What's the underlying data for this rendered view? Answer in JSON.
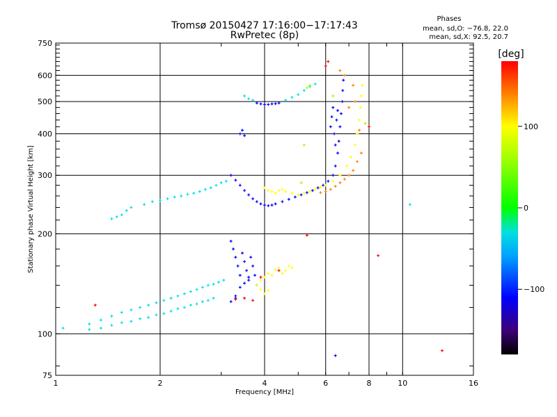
{
  "chart_data": {
    "type": "scatter",
    "title": "Tromsø 20150427 17:16:00−17:17:43",
    "subtitle": "RwPretec (8p)",
    "xlabel": "Frequency [MHz]",
    "ylabel": "Stationary phase Virtual Height [km]",
    "x_scale": "log",
    "y_scale": "log",
    "xlim": [
      1,
      16
    ],
    "ylim": [
      75,
      750
    ],
    "x_ticks": [
      1,
      2,
      4,
      6,
      8,
      10,
      16
    ],
    "x_tick_labels": [
      "1",
      "2",
      "4",
      "6",
      "8",
      "10",
      "16"
    ],
    "y_ticks": [
      75,
      100,
      200,
      300,
      400,
      500,
      600,
      750
    ],
    "y_tick_labels": [
      "75",
      "100",
      "200",
      "300",
      "400",
      "500",
      "600",
      "750"
    ],
    "grid": true,
    "phases_box": {
      "title": "Phases",
      "o_line": "mean, sd,O: −76.8, 22.0",
      "x_line": "mean, sd,X: 92.5, 20.7"
    },
    "colorbar": {
      "label": "[deg]",
      "range": [
        -180,
        180
      ],
      "ticks": [
        100,
        0,
        -100
      ],
      "tick_labels": [
        "100",
        "0",
        "−100"
      ],
      "stops": [
        {
          "v": -180,
          "color": "#000000"
        },
        {
          "v": -150,
          "color": "#3c0078"
        },
        {
          "v": -110,
          "color": "#0000ff"
        },
        {
          "v": -60,
          "color": "#00a0ff"
        },
        {
          "v": -30,
          "color": "#00e0e0"
        },
        {
          "v": 0,
          "color": "#00ff00"
        },
        {
          "v": 60,
          "color": "#a0ff00"
        },
        {
          "v": 100,
          "color": "#ffff00"
        },
        {
          "v": 140,
          "color": "#ff8000"
        },
        {
          "v": 180,
          "color": "#ff0000"
        }
      ]
    },
    "series": [
      {
        "points": [
          [
            1.45,
            222
          ],
          [
            1.5,
            225
          ],
          [
            1.55,
            228
          ],
          [
            1.6,
            235
          ],
          [
            1.65,
            240
          ],
          [
            1.8,
            245
          ],
          [
            1.9,
            250
          ],
          [
            2.0,
            252
          ],
          [
            2.1,
            255
          ],
          [
            2.2,
            258
          ],
          [
            2.3,
            260
          ],
          [
            2.4,
            263
          ],
          [
            2.5,
            265
          ],
          [
            2.6,
            268
          ],
          [
            2.7,
            272
          ],
          [
            2.8,
            275
          ],
          [
            2.9,
            280
          ],
          [
            3.0,
            285
          ],
          [
            3.1,
            288
          ],
          [
            1.05,
            104
          ],
          [
            1.25,
            107
          ],
          [
            1.35,
            110
          ],
          [
            1.45,
            113
          ],
          [
            1.55,
            116
          ],
          [
            1.65,
            118
          ],
          [
            1.75,
            120
          ],
          [
            1.85,
            122
          ],
          [
            1.95,
            124
          ],
          [
            2.05,
            126
          ],
          [
            2.15,
            128
          ],
          [
            2.25,
            130
          ],
          [
            2.35,
            132
          ],
          [
            2.45,
            134
          ],
          [
            2.55,
            136
          ],
          [
            2.65,
            138
          ],
          [
            2.75,
            140
          ],
          [
            2.85,
            141
          ],
          [
            2.95,
            143
          ],
          [
            3.05,
            145
          ],
          [
            1.25,
            103
          ],
          [
            1.35,
            104
          ],
          [
            1.45,
            106
          ],
          [
            1.55,
            108
          ],
          [
            1.65,
            109
          ],
          [
            1.75,
            111
          ],
          [
            1.85,
            112
          ],
          [
            1.95,
            114
          ],
          [
            2.05,
            115
          ],
          [
            2.15,
            117
          ],
          [
            2.25,
            119
          ],
          [
            2.35,
            120
          ],
          [
            2.45,
            122
          ],
          [
            2.55,
            123
          ],
          [
            2.65,
            125
          ],
          [
            2.75,
            126
          ],
          [
            2.85,
            128
          ],
          [
            3.5,
            520
          ],
          [
            3.6,
            510
          ],
          [
            3.7,
            505
          ],
          [
            4.6,
            505
          ],
          [
            4.8,
            515
          ],
          [
            5.0,
            525
          ],
          [
            5.2,
            540
          ],
          [
            5.4,
            555
          ],
          [
            5.6,
            565
          ],
          [
            10.5,
            245
          ]
        ],
        "phase": -40
      },
      {
        "points": [
          [
            3.2,
            190
          ],
          [
            3.25,
            180
          ],
          [
            3.3,
            170
          ],
          [
            3.35,
            160
          ],
          [
            3.4,
            150
          ],
          [
            3.45,
            175
          ],
          [
            3.5,
            165
          ],
          [
            3.55,
            155
          ],
          [
            3.6,
            145
          ],
          [
            3.65,
            170
          ],
          [
            3.7,
            160
          ],
          [
            3.75,
            150
          ],
          [
            3.8,
            140
          ],
          [
            3.3,
            130
          ],
          [
            3.4,
            138
          ],
          [
            3.5,
            142
          ],
          [
            3.6,
            148
          ],
          [
            3.2,
            125
          ],
          [
            3.3,
            128
          ],
          [
            3.2,
            300
          ],
          [
            3.3,
            290
          ],
          [
            3.4,
            280
          ],
          [
            3.5,
            270
          ],
          [
            3.6,
            262
          ],
          [
            3.7,
            255
          ],
          [
            3.8,
            250
          ],
          [
            3.9,
            246
          ],
          [
            4.0,
            244
          ],
          [
            4.1,
            243
          ],
          [
            4.2,
            244
          ],
          [
            4.3,
            246
          ],
          [
            4.5,
            250
          ],
          [
            4.7,
            254
          ],
          [
            4.9,
            258
          ],
          [
            5.1,
            262
          ],
          [
            5.3,
            266
          ],
          [
            5.5,
            270
          ],
          [
            5.7,
            275
          ],
          [
            5.9,
            280
          ],
          [
            6.1,
            288
          ],
          [
            6.3,
            300
          ],
          [
            6.4,
            320
          ],
          [
            6.5,
            350
          ],
          [
            6.55,
            380
          ],
          [
            6.6,
            420
          ],
          [
            6.65,
            460
          ],
          [
            6.7,
            500
          ],
          [
            6.72,
            540
          ],
          [
            6.75,
            580
          ],
          [
            6.2,
            420
          ],
          [
            6.25,
            450
          ],
          [
            6.3,
            480
          ],
          [
            6.35,
            400
          ],
          [
            6.4,
            370
          ],
          [
            6.45,
            440
          ],
          [
            6.5,
            470
          ],
          [
            3.8,
            495
          ],
          [
            3.9,
            492
          ],
          [
            4.0,
            490
          ],
          [
            4.1,
            490
          ],
          [
            4.2,
            492
          ],
          [
            4.3,
            493
          ],
          [
            4.4,
            495
          ],
          [
            3.4,
            400
          ],
          [
            3.45,
            410
          ],
          [
            3.5,
            395
          ],
          [
            6.4,
            86
          ]
        ],
        "phase": -105
      },
      {
        "points": [
          [
            4.0,
            275
          ],
          [
            4.1,
            270
          ],
          [
            4.2,
            268
          ],
          [
            4.3,
            265
          ],
          [
            4.4,
            270
          ],
          [
            4.5,
            272
          ],
          [
            4.6,
            268
          ],
          [
            4.8,
            265
          ],
          [
            5.0,
            262
          ],
          [
            5.2,
            265
          ],
          [
            5.4,
            268
          ],
          [
            5.6,
            272
          ],
          [
            5.8,
            276
          ],
          [
            6.0,
            280
          ],
          [
            6.3,
            288
          ],
          [
            6.6,
            300
          ],
          [
            6.9,
            320
          ],
          [
            7.1,
            340
          ],
          [
            7.3,
            370
          ],
          [
            7.4,
            400
          ],
          [
            7.5,
            440
          ],
          [
            7.55,
            480
          ],
          [
            7.6,
            520
          ],
          [
            7.65,
            560
          ],
          [
            3.9,
            145
          ],
          [
            4.0,
            148
          ],
          [
            4.1,
            152
          ],
          [
            4.2,
            150
          ],
          [
            4.3,
            156
          ],
          [
            4.4,
            158
          ],
          [
            4.5,
            152
          ],
          [
            4.6,
            155
          ],
          [
            4.7,
            160
          ],
          [
            4.8,
            158
          ],
          [
            3.8,
            140
          ],
          [
            3.9,
            136
          ],
          [
            4.0,
            132
          ],
          [
            4.1,
            135
          ]
        ],
        "phase": 100
      },
      {
        "points": [
          [
            7.2,
            560
          ],
          [
            7.3,
            500
          ],
          [
            7.0,
            480
          ],
          [
            7.5,
            410
          ],
          [
            7.6,
            350
          ],
          [
            7.4,
            330
          ],
          [
            7.2,
            310
          ],
          [
            7.0,
            300
          ],
          [
            6.8,
            292
          ],
          [
            6.6,
            285
          ],
          [
            6.4,
            278
          ],
          [
            6.2,
            272
          ],
          [
            6.0,
            268
          ],
          [
            5.8,
            266
          ],
          [
            6.6,
            620
          ],
          [
            6.8,
            600
          ]
        ],
        "phase": 140
      },
      {
        "points": [
          [
            1.3,
            122
          ],
          [
            3.3,
            127
          ],
          [
            3.9,
            148
          ],
          [
            4.4,
            155
          ],
          [
            5.3,
            198
          ],
          [
            8.5,
            172
          ],
          [
            13.0,
            89
          ],
          [
            6.0,
            640
          ],
          [
            6.1,
            660
          ],
          [
            8.0,
            420
          ],
          [
            3.5,
            128
          ],
          [
            3.7,
            126
          ]
        ],
        "phase": 180
      },
      {
        "points": [
          [
            5.3,
            550
          ],
          [
            5.4,
            560
          ],
          [
            6.3,
            520
          ],
          [
            7.8,
            430
          ],
          [
            5.2,
            370
          ],
          [
            5.1,
            285
          ]
        ],
        "phase": 40
      }
    ]
  }
}
